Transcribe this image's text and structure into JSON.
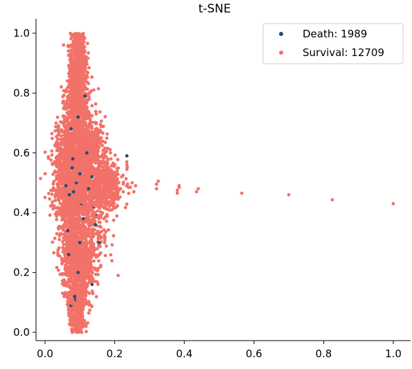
{
  "chart_data": {
    "type": "scatter",
    "title": "t-SNE",
    "xlabel": "",
    "ylabel": "",
    "xlim": [
      -0.025,
      1.025
    ],
    "ylim": [
      -0.025,
      1.025
    ],
    "xticks": [
      "0.0",
      "0.2",
      "0.4",
      "0.6",
      "0.8",
      "1.0"
    ],
    "yticks": [
      "0.0",
      "0.2",
      "0.4",
      "0.6",
      "0.8",
      "1.0"
    ],
    "grid": false,
    "legend_position": "top-right",
    "series": [
      {
        "name": "Death: 1989",
        "color": "#1f4e79",
        "points": [
          [
            0.075,
            0.68
          ],
          [
            0.078,
            0.55
          ],
          [
            0.082,
            0.47
          ],
          [
            0.09,
            0.5
          ],
          [
            0.1,
            0.53
          ],
          [
            0.085,
            0.12
          ],
          [
            0.095,
            0.2
          ],
          [
            0.06,
            0.49
          ],
          [
            0.11,
            0.38
          ],
          [
            0.12,
            0.6
          ],
          [
            0.135,
            0.16
          ],
          [
            0.155,
            0.3
          ],
          [
            0.15,
            0.39
          ],
          [
            0.145,
            0.36
          ],
          [
            0.095,
            0.72
          ],
          [
            0.088,
            0.11
          ],
          [
            0.07,
            0.46
          ],
          [
            0.105,
            0.43
          ],
          [
            0.068,
            0.26
          ],
          [
            0.115,
            0.79
          ],
          [
            0.235,
            0.59
          ],
          [
            0.135,
            0.52
          ],
          [
            0.125,
            0.48
          ],
          [
            0.14,
            0.42
          ],
          [
            0.08,
            0.58
          ],
          [
            0.075,
            0.09
          ],
          [
            0.1,
            0.3
          ],
          [
            0.065,
            0.34
          ]
        ]
      },
      {
        "name": "Survival: 12709",
        "color": "#f27168",
        "outliers": [
          [
            0.21,
            0.19
          ],
          [
            0.245,
            0.485
          ],
          [
            0.25,
            0.5
          ],
          [
            0.255,
            0.47
          ],
          [
            0.26,
            0.49
          ],
          [
            0.32,
            0.48
          ],
          [
            0.32,
            0.495
          ],
          [
            0.325,
            0.505
          ],
          [
            0.38,
            0.475
          ],
          [
            0.385,
            0.485
          ],
          [
            0.38,
            0.465
          ],
          [
            0.385,
            0.49
          ],
          [
            0.435,
            0.47
          ],
          [
            0.44,
            0.48
          ],
          [
            0.565,
            0.465
          ],
          [
            0.7,
            0.46
          ],
          [
            0.825,
            0.443
          ],
          [
            1.0,
            0.43
          ],
          [
            0.235,
            0.57
          ],
          [
            0.235,
            0.545
          ],
          [
            0.235,
            0.56
          ],
          [
            0.22,
            0.52
          ],
          [
            0.21,
            0.48
          ]
        ]
      }
    ]
  }
}
